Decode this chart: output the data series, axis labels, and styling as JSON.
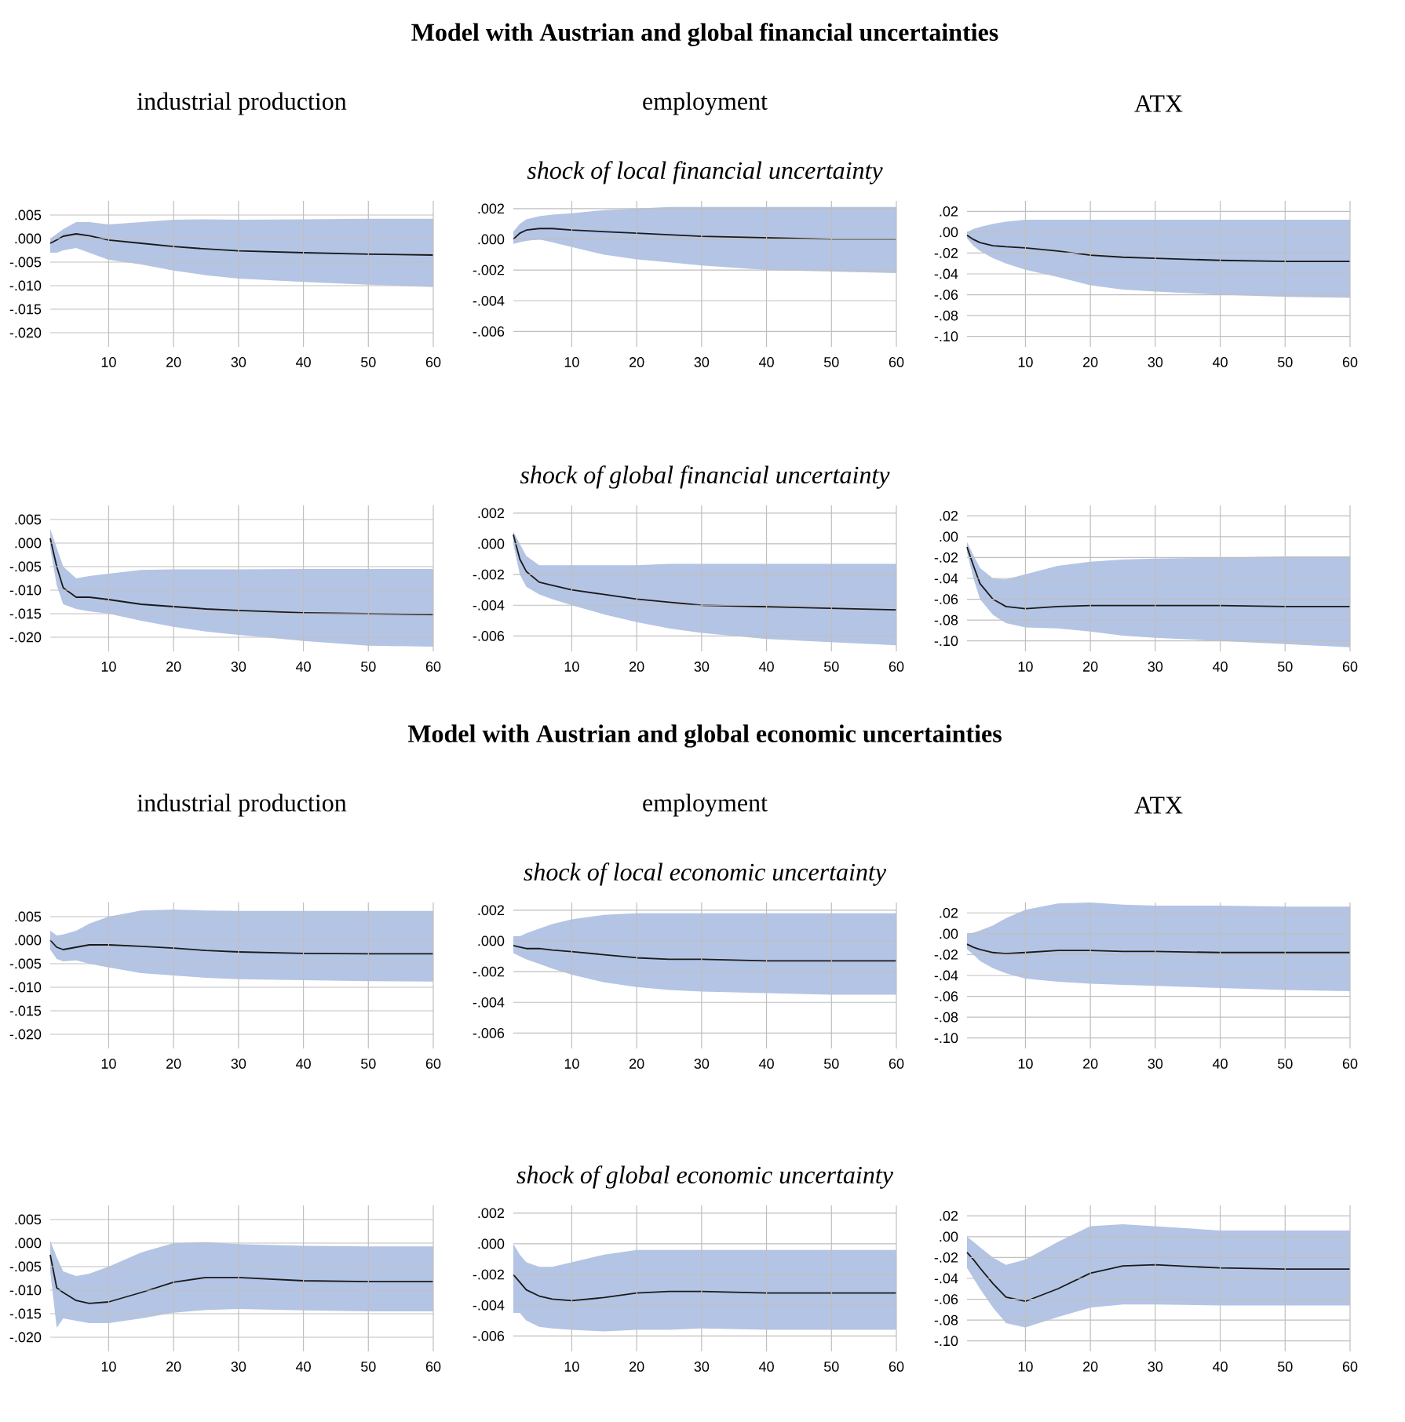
{
  "chart_data": [
    {
      "type": "line",
      "title": "industrial production",
      "x": [
        1,
        2,
        3,
        5,
        7,
        10,
        15,
        20,
        25,
        30,
        40,
        50,
        60
      ],
      "xlim": [
        1,
        60
      ],
      "xticks": [
        10,
        20,
        30,
        40,
        50,
        60
      ],
      "ylim": [
        -0.023,
        0.008
      ],
      "yticks": [
        {
          "value": 0.005,
          "label": ".005"
        },
        {
          "value": 0,
          "label": ".000"
        },
        {
          "value": -0.005,
          "label": "-.005"
        },
        {
          "value": -0.01,
          "label": "-.010"
        },
        {
          "value": -0.015,
          "label": "-.015"
        },
        {
          "value": -0.02,
          "label": "-.020"
        }
      ],
      "grid": true,
      "series": [
        {
          "color": "#1a1a1a",
          "values": [
            -0.001,
            -0.0003,
            0.0005,
            0.001,
            0.0006,
            -0.0003,
            -0.001,
            -0.0017,
            -0.0022,
            -0.0026,
            -0.003,
            -0.0033,
            -0.0035
          ],
          "upper": [
            0.0,
            0.001,
            0.002,
            0.0035,
            0.0035,
            0.003,
            0.0035,
            0.004,
            0.0041,
            0.004,
            0.0041,
            0.0042,
            0.0042
          ],
          "lower": [
            -0.003,
            -0.003,
            -0.0025,
            -0.002,
            -0.003,
            -0.0045,
            -0.0055,
            -0.0068,
            -0.0078,
            -0.0085,
            -0.0092,
            -0.0098,
            -0.0103
          ]
        }
      ]
    },
    {
      "type": "line",
      "title": "employment",
      "subtitle": "*shock of local financial uncertainty*",
      "annotations": [
        "**Model with Austrian and global financial uncertainties**"
      ],
      "x": [
        1,
        2,
        3,
        5,
        7,
        10,
        15,
        20,
        25,
        30,
        40,
        50,
        60
      ],
      "xlim": [
        1,
        60
      ],
      "xticks": [
        10,
        20,
        30,
        40,
        50,
        60
      ],
      "ylim": [
        -0.007,
        0.0025
      ],
      "yticks": [
        {
          "value": 0.002,
          "label": ".002"
        },
        {
          "value": 0,
          "label": ".000"
        },
        {
          "value": -0.002,
          "label": "-.002"
        },
        {
          "value": -0.004,
          "label": "-.004"
        },
        {
          "value": -0.006,
          "label": "-.006"
        }
      ],
      "grid": true,
      "series": [
        {
          "color": "#1a1a1a",
          "values": [
            0.0,
            0.0004,
            0.0006,
            0.0007,
            0.0007,
            0.0006,
            0.0005,
            0.0004,
            0.0003,
            0.0002,
            0.0001,
            0.0,
            0.0
          ],
          "upper": [
            0.0005,
            0.001,
            0.0013,
            0.0015,
            0.0016,
            0.0017,
            0.0019,
            0.002,
            0.0021,
            0.0021,
            0.0021,
            0.0021,
            0.0021
          ],
          "lower": [
            -0.0003,
            -0.0002,
            -0.0001,
            0.0,
            -0.0002,
            -0.0005,
            -0.001,
            -0.0013,
            -0.0015,
            -0.0017,
            -0.002,
            -0.0021,
            -0.0022
          ]
        }
      ]
    },
    {
      "type": "line",
      "title": "ATX",
      "x": [
        1,
        2,
        3,
        5,
        7,
        10,
        15,
        20,
        25,
        30,
        40,
        50,
        60
      ],
      "xlim": [
        1,
        60
      ],
      "xticks": [
        10,
        20,
        30,
        40,
        50,
        60
      ],
      "ylim": [
        -0.11,
        0.03
      ],
      "yticks": [
        {
          "value": 0.02,
          "label": ".02"
        },
        {
          "value": 0,
          "label": ".00"
        },
        {
          "value": -0.02,
          "label": "-.02"
        },
        {
          "value": -0.04,
          "label": "-.04"
        },
        {
          "value": -0.06,
          "label": "-.06"
        },
        {
          "value": -0.08,
          "label": "-.08"
        },
        {
          "value": -0.1,
          "label": "-.10"
        }
      ],
      "grid": true,
      "series": [
        {
          "color": "#1a1a1a",
          "values": [
            -0.003,
            -0.007,
            -0.01,
            -0.013,
            -0.014,
            -0.015,
            -0.018,
            -0.022,
            -0.024,
            -0.025,
            -0.027,
            -0.028,
            -0.028
          ],
          "upper": [
            0.0,
            0.003,
            0.005,
            0.008,
            0.01,
            0.012,
            0.012,
            0.012,
            0.012,
            0.012,
            0.012,
            0.012,
            0.012
          ],
          "lower": [
            -0.006,
            -0.013,
            -0.018,
            -0.025,
            -0.03,
            -0.036,
            -0.043,
            -0.051,
            -0.055,
            -0.057,
            -0.06,
            -0.062,
            -0.063
          ]
        }
      ]
    },
    {
      "type": "line",
      "x": [
        1,
        2,
        3,
        5,
        7,
        10,
        15,
        20,
        25,
        30,
        40,
        50,
        60
      ],
      "xlim": [
        1,
        60
      ],
      "xticks": [
        10,
        20,
        30,
        40,
        50,
        60
      ],
      "ylim": [
        -0.023,
        0.008
      ],
      "yticks": [
        {
          "value": 0.005,
          "label": ".005"
        },
        {
          "value": 0,
          "label": ".000"
        },
        {
          "value": -0.005,
          "label": "-.005"
        },
        {
          "value": -0.01,
          "label": "-.010"
        },
        {
          "value": -0.015,
          "label": "-.015"
        },
        {
          "value": -0.02,
          "label": "-.020"
        }
      ],
      "grid": true,
      "series": [
        {
          "color": "#1a1a1a",
          "values": [
            0.001,
            -0.005,
            -0.0095,
            -0.0115,
            -0.0115,
            -0.012,
            -0.013,
            -0.0135,
            -0.014,
            -0.0143,
            -0.0148,
            -0.015,
            -0.0152
          ],
          "upper": [
            0.003,
            -0.001,
            -0.005,
            -0.0075,
            -0.007,
            -0.0065,
            -0.0057,
            -0.0056,
            -0.0056,
            -0.0056,
            -0.0055,
            -0.0055,
            -0.0055
          ],
          "lower": [
            -0.001,
            -0.009,
            -0.013,
            -0.014,
            -0.0145,
            -0.015,
            -0.0165,
            -0.0178,
            -0.0188,
            -0.0195,
            -0.0208,
            -0.0218,
            -0.022
          ]
        }
      ]
    },
    {
      "type": "line",
      "subtitle": "*shock of global financial uncertainty*",
      "x": [
        1,
        2,
        3,
        5,
        7,
        10,
        15,
        20,
        25,
        30,
        40,
        50,
        60
      ],
      "xlim": [
        1,
        60
      ],
      "xticks": [
        10,
        20,
        30,
        40,
        50,
        60
      ],
      "ylim": [
        -0.007,
        0.0025
      ],
      "yticks": [
        {
          "value": 0.002,
          "label": ".002"
        },
        {
          "value": 0,
          "label": ".000"
        },
        {
          "value": -0.002,
          "label": "-.002"
        },
        {
          "value": -0.004,
          "label": "-.004"
        },
        {
          "value": -0.006,
          "label": "-.006"
        }
      ],
      "grid": true,
      "series": [
        {
          "color": "#1a1a1a",
          "values": [
            0.0006,
            -0.001,
            -0.0018,
            -0.0025,
            -0.0027,
            -0.003,
            -0.0033,
            -0.0036,
            -0.0038,
            -0.004,
            -0.0041,
            -0.0042,
            -0.0043
          ],
          "upper": [
            0.0008,
            0.0,
            -0.0008,
            -0.0014,
            -0.0014,
            -0.0014,
            -0.0014,
            -0.0014,
            -0.0013,
            -0.0013,
            -0.0013,
            -0.0013,
            -0.0013
          ],
          "lower": [
            0.0,
            -0.002,
            -0.0028,
            -0.0033,
            -0.0036,
            -0.004,
            -0.0046,
            -0.0051,
            -0.0055,
            -0.0058,
            -0.0062,
            -0.0064,
            -0.0066
          ]
        }
      ]
    },
    {
      "type": "line",
      "x": [
        1,
        2,
        3,
        5,
        7,
        10,
        15,
        20,
        25,
        30,
        40,
        50,
        60
      ],
      "xlim": [
        1,
        60
      ],
      "xticks": [
        10,
        20,
        30,
        40,
        50,
        60
      ],
      "ylim": [
        -0.11,
        0.03
      ],
      "yticks": [
        {
          "value": 0.02,
          "label": ".02"
        },
        {
          "value": 0,
          "label": ".00"
        },
        {
          "value": -0.02,
          "label": "-.02"
        },
        {
          "value": -0.04,
          "label": "-.04"
        },
        {
          "value": -0.06,
          "label": "-.06"
        },
        {
          "value": -0.08,
          "label": "-.08"
        },
        {
          "value": -0.1,
          "label": "-.10"
        }
      ],
      "grid": true,
      "series": [
        {
          "color": "#1a1a1a",
          "values": [
            -0.01,
            -0.028,
            -0.045,
            -0.06,
            -0.067,
            -0.069,
            -0.067,
            -0.066,
            -0.066,
            -0.066,
            -0.066,
            -0.067,
            -0.067
          ],
          "upper": [
            -0.005,
            -0.018,
            -0.03,
            -0.04,
            -0.041,
            -0.036,
            -0.028,
            -0.024,
            -0.022,
            -0.021,
            -0.02,
            -0.019,
            -0.019
          ],
          "lower": [
            -0.015,
            -0.04,
            -0.06,
            -0.075,
            -0.083,
            -0.087,
            -0.088,
            -0.091,
            -0.095,
            -0.097,
            -0.1,
            -0.103,
            -0.106
          ]
        }
      ]
    },
    {
      "type": "line",
      "title": "industrial production",
      "x": [
        1,
        2,
        3,
        5,
        7,
        10,
        15,
        20,
        25,
        30,
        40,
        50,
        60
      ],
      "xlim": [
        1,
        60
      ],
      "xticks": [
        10,
        20,
        30,
        40,
        50,
        60
      ],
      "ylim": [
        -0.023,
        0.008
      ],
      "yticks": [
        {
          "value": 0.005,
          "label": ".005"
        },
        {
          "value": 0,
          "label": ".000"
        },
        {
          "value": -0.005,
          "label": "-.005"
        },
        {
          "value": -0.01,
          "label": "-.010"
        },
        {
          "value": -0.015,
          "label": "-.015"
        },
        {
          "value": -0.02,
          "label": "-.020"
        }
      ],
      "grid": true,
      "series": [
        {
          "color": "#1a1a1a",
          "values": [
            0.0,
            -0.0015,
            -0.002,
            -0.0015,
            -0.001,
            -0.001,
            -0.0013,
            -0.0017,
            -0.0022,
            -0.0025,
            -0.0028,
            -0.0029,
            -0.0029
          ],
          "upper": [
            0.002,
            0.001,
            0.0012,
            0.002,
            0.0035,
            0.005,
            0.0063,
            0.0065,
            0.0063,
            0.0062,
            0.0062,
            0.0062,
            0.0062
          ],
          "lower": [
            -0.002,
            -0.004,
            -0.0045,
            -0.0043,
            -0.005,
            -0.0058,
            -0.007,
            -0.0075,
            -0.008,
            -0.0083,
            -0.0085,
            -0.0087,
            -0.0088
          ]
        }
      ]
    },
    {
      "type": "line",
      "title": "employment",
      "subtitle": "*shock of local economic uncertainty*",
      "annotations": [
        "**Model with Austrian and global economic uncertainties**"
      ],
      "x": [
        1,
        2,
        3,
        5,
        7,
        10,
        15,
        20,
        25,
        30,
        40,
        50,
        60
      ],
      "xlim": [
        1,
        60
      ],
      "xticks": [
        10,
        20,
        30,
        40,
        50,
        60
      ],
      "ylim": [
        -0.007,
        0.0025
      ],
      "yticks": [
        {
          "value": 0.002,
          "label": ".002"
        },
        {
          "value": 0,
          "label": ".000"
        },
        {
          "value": -0.002,
          "label": "-.002"
        },
        {
          "value": -0.004,
          "label": "-.004"
        },
        {
          "value": -0.006,
          "label": "-.006"
        }
      ],
      "grid": true,
      "series": [
        {
          "color": "#1a1a1a",
          "values": [
            -0.0003,
            -0.0004,
            -0.0005,
            -0.0005,
            -0.0006,
            -0.0007,
            -0.0009,
            -0.0011,
            -0.0012,
            -0.0012,
            -0.0013,
            -0.0013,
            -0.0013
          ],
          "upper": [
            0.0003,
            0.0003,
            0.0005,
            0.0008,
            0.0011,
            0.0014,
            0.0017,
            0.0018,
            0.0018,
            0.0018,
            0.0018,
            0.0018,
            0.0018
          ],
          "lower": [
            -0.0008,
            -0.001,
            -0.0012,
            -0.0015,
            -0.0018,
            -0.0022,
            -0.0027,
            -0.003,
            -0.0032,
            -0.0033,
            -0.0034,
            -0.0035,
            -0.0035
          ]
        }
      ]
    },
    {
      "type": "line",
      "title": "ATX",
      "x": [
        1,
        2,
        3,
        5,
        7,
        10,
        15,
        20,
        25,
        30,
        40,
        50,
        60
      ],
      "xlim": [
        1,
        60
      ],
      "xticks": [
        10,
        20,
        30,
        40,
        50,
        60
      ],
      "ylim": [
        -0.11,
        0.03
      ],
      "yticks": [
        {
          "value": 0.02,
          "label": ".02"
        },
        {
          "value": 0,
          "label": ".00"
        },
        {
          "value": -0.02,
          "label": "-.02"
        },
        {
          "value": -0.04,
          "label": "-.04"
        },
        {
          "value": -0.06,
          "label": "-.06"
        },
        {
          "value": -0.08,
          "label": "-.08"
        },
        {
          "value": -0.1,
          "label": "-.10"
        }
      ],
      "grid": true,
      "series": [
        {
          "color": "#1a1a1a",
          "values": [
            -0.01,
            -0.013,
            -0.015,
            -0.018,
            -0.019,
            -0.018,
            -0.016,
            -0.016,
            -0.017,
            -0.017,
            -0.018,
            -0.018,
            -0.018
          ],
          "upper": [
            0.0,
            0.001,
            0.003,
            0.008,
            0.015,
            0.023,
            0.029,
            0.03,
            0.028,
            0.027,
            0.027,
            0.026,
            0.026
          ],
          "lower": [
            -0.015,
            -0.02,
            -0.026,
            -0.033,
            -0.038,
            -0.043,
            -0.046,
            -0.048,
            -0.049,
            -0.05,
            -0.052,
            -0.054,
            -0.055
          ]
        }
      ]
    },
    {
      "type": "line",
      "x": [
        1,
        2,
        3,
        5,
        7,
        10,
        15,
        20,
        25,
        30,
        40,
        50,
        60
      ],
      "xlim": [
        1,
        60
      ],
      "xticks": [
        10,
        20,
        30,
        40,
        50,
        60
      ],
      "ylim": [
        -0.023,
        0.008
      ],
      "yticks": [
        {
          "value": 0.005,
          "label": ".005"
        },
        {
          "value": 0,
          "label": ".000"
        },
        {
          "value": -0.005,
          "label": "-.005"
        },
        {
          "value": -0.01,
          "label": "-.010"
        },
        {
          "value": -0.015,
          "label": "-.015"
        },
        {
          "value": -0.02,
          "label": "-.020"
        }
      ],
      "grid": true,
      "series": [
        {
          "color": "#1a1a1a",
          "values": [
            -0.0025,
            -0.0095,
            -0.0105,
            -0.0122,
            -0.0128,
            -0.0125,
            -0.0105,
            -0.0083,
            -0.0073,
            -0.0073,
            -0.008,
            -0.0082,
            -0.0082
          ],
          "upper": [
            0.0005,
            -0.003,
            -0.006,
            -0.007,
            -0.0065,
            -0.005,
            -0.002,
            0.0,
            0.0002,
            -0.0002,
            -0.0006,
            -0.0007,
            -0.0007
          ],
          "lower": [
            -0.006,
            -0.018,
            -0.016,
            -0.0165,
            -0.017,
            -0.017,
            -0.016,
            -0.0148,
            -0.0142,
            -0.014,
            -0.0143,
            -0.0145,
            -0.0145
          ]
        }
      ]
    },
    {
      "type": "line",
      "subtitle": "*shock of global economic uncertainty*",
      "x": [
        1,
        2,
        3,
        5,
        7,
        10,
        15,
        20,
        25,
        30,
        40,
        50,
        60
      ],
      "xlim": [
        1,
        60
      ],
      "xticks": [
        10,
        20,
        30,
        40,
        50,
        60
      ],
      "ylim": [
        -0.007,
        0.0025
      ],
      "yticks": [
        {
          "value": 0.002,
          "label": ".002"
        },
        {
          "value": 0,
          "label": ".000"
        },
        {
          "value": -0.002,
          "label": "-.002"
        },
        {
          "value": -0.004,
          "label": "-.004"
        },
        {
          "value": -0.006,
          "label": "-.006"
        }
      ],
      "grid": true,
      "series": [
        {
          "color": "#1a1a1a",
          "values": [
            -0.002,
            -0.0025,
            -0.003,
            -0.0034,
            -0.0036,
            -0.0037,
            -0.0035,
            -0.0032,
            -0.0031,
            -0.0031,
            -0.0032,
            -0.0032,
            -0.0032
          ],
          "upper": [
            0.0,
            -0.0007,
            -0.0012,
            -0.0015,
            -0.0015,
            -0.0012,
            -0.0007,
            -0.0004,
            -0.0004,
            -0.0004,
            -0.0004,
            -0.0004,
            -0.0004
          ],
          "lower": [
            -0.0045,
            -0.0045,
            -0.005,
            -0.0054,
            -0.0055,
            -0.0056,
            -0.0057,
            -0.0056,
            -0.0056,
            -0.0055,
            -0.0056,
            -0.0056,
            -0.0056
          ]
        }
      ]
    },
    {
      "type": "line",
      "x": [
        1,
        2,
        3,
        5,
        7,
        10,
        15,
        20,
        25,
        30,
        40,
        50,
        60
      ],
      "xlim": [
        1,
        60
      ],
      "xticks": [
        10,
        20,
        30,
        40,
        50,
        60
      ],
      "ylim": [
        -0.11,
        0.03
      ],
      "yticks": [
        {
          "value": 0.02,
          "label": ".02"
        },
        {
          "value": 0,
          "label": ".00"
        },
        {
          "value": -0.02,
          "label": "-.02"
        },
        {
          "value": -0.04,
          "label": "-.04"
        },
        {
          "value": -0.06,
          "label": "-.06"
        },
        {
          "value": -0.08,
          "label": "-.08"
        },
        {
          "value": -0.1,
          "label": "-.10"
        }
      ],
      "grid": true,
      "series": [
        {
          "color": "#1a1a1a",
          "values": [
            -0.015,
            -0.022,
            -0.03,
            -0.045,
            -0.058,
            -0.062,
            -0.05,
            -0.035,
            -0.028,
            -0.027,
            -0.03,
            -0.031,
            -0.031
          ],
          "upper": [
            0.0,
            -0.005,
            -0.01,
            -0.02,
            -0.027,
            -0.022,
            -0.005,
            0.01,
            0.012,
            0.01,
            0.006,
            0.006,
            0.006
          ],
          "lower": [
            -0.03,
            -0.04,
            -0.05,
            -0.068,
            -0.083,
            -0.087,
            -0.077,
            -0.068,
            -0.065,
            -0.065,
            -0.066,
            -0.066,
            -0.066
          ]
        }
      ]
    }
  ]
}
